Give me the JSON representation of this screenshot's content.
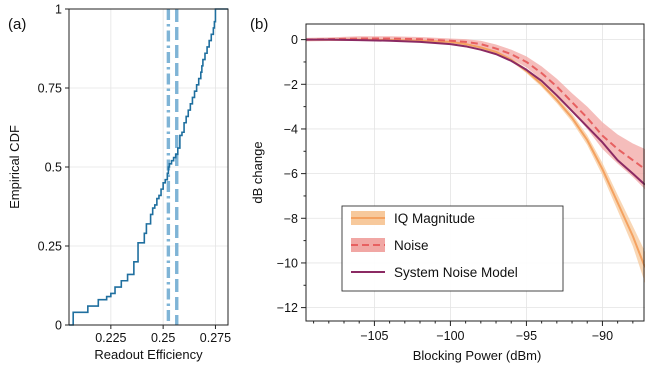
{
  "colors": {
    "cdf_line": "#1f6f9f",
    "vline": "#7fb4d6",
    "iq": "#f4a261",
    "iq_band": "#f7c99c",
    "noise": "#e76060",
    "noise_band": "#f1a7a4",
    "model": "#8b2a63"
  },
  "chart_data": [
    {
      "panel_label": "(a)",
      "type": "line",
      "xlabel": "Readout Efficiency",
      "ylabel": "Empirical CDF",
      "xlim": [
        0.205,
        0.281
      ],
      "ylim": [
        0,
        1
      ],
      "xticks": [
        0.225,
        0.25,
        0.275
      ],
      "xtick_labels": [
        "0.225",
        "0.25",
        "0.275"
      ],
      "yticks": [
        0,
        0.25,
        0.5,
        0.75,
        1
      ],
      "ytick_labels": [
        "0",
        "0.25",
        "0.5",
        "0.75",
        "1"
      ],
      "grid": true,
      "step_series": {
        "x": [
          0.205,
          0.207,
          0.214,
          0.219,
          0.223,
          0.225,
          0.227,
          0.23,
          0.233,
          0.236,
          0.238,
          0.241,
          0.242,
          0.244,
          0.245,
          0.246,
          0.247,
          0.248,
          0.249,
          0.25,
          0.251,
          0.252,
          0.2525,
          0.253,
          0.254,
          0.255,
          0.256,
          0.257,
          0.258,
          0.259,
          0.26,
          0.261,
          0.262,
          0.263,
          0.264,
          0.265,
          0.266,
          0.267,
          0.268,
          0.2685,
          0.269,
          0.27,
          0.271,
          0.272,
          0.273,
          0.274,
          0.2745,
          0.275
        ],
        "y": [
          0.0,
          0.04,
          0.06,
          0.08,
          0.09,
          0.1,
          0.12,
          0.14,
          0.16,
          0.2,
          0.26,
          0.29,
          0.32,
          0.35,
          0.37,
          0.38,
          0.4,
          0.41,
          0.43,
          0.45,
          0.46,
          0.48,
          0.5,
          0.51,
          0.52,
          0.53,
          0.54,
          0.56,
          0.6,
          0.61,
          0.64,
          0.66,
          0.68,
          0.7,
          0.72,
          0.74,
          0.76,
          0.78,
          0.8,
          0.82,
          0.84,
          0.86,
          0.88,
          0.9,
          0.92,
          0.94,
          0.96,
          1.0
        ]
      },
      "vlines": [
        {
          "x": 0.2525,
          "style": "dashdot"
        },
        {
          "x": 0.2565,
          "style": "dashed"
        }
      ]
    },
    {
      "panel_label": "(b)",
      "type": "line",
      "xlabel": "Blocking Power (dBm)",
      "ylabel": "dB change",
      "xlim": [
        -109.5,
        -87.2
      ],
      "ylim": [
        -12.6,
        0.7
      ],
      "xticks": [
        -105,
        -100,
        -95,
        -90
      ],
      "xtick_labels": [
        "−105",
        "−100",
        "−95",
        "−90"
      ],
      "yticks": [
        0,
        -2,
        -4,
        -6,
        -8,
        -10,
        -12
      ],
      "ytick_labels": [
        "0",
        "−2",
        "−4",
        "−6",
        "−8",
        "−10",
        "−12"
      ],
      "grid": true,
      "legend_position": "lower-left",
      "series": [
        {
          "name": "IQ Magnitude",
          "style": "solid",
          "x": [
            -109.5,
            -108,
            -106,
            -104,
            -102,
            -100,
            -99,
            -98,
            -97,
            -96,
            -95,
            -94,
            -93,
            -92,
            -91,
            -90,
            -89,
            -88,
            -87.2
          ],
          "y": [
            0.0,
            0.0,
            0.0,
            -0.02,
            -0.05,
            -0.1,
            -0.2,
            -0.35,
            -0.55,
            -0.9,
            -1.4,
            -2.0,
            -2.7,
            -3.5,
            -4.5,
            -5.8,
            -7.3,
            -8.8,
            -10.2
          ],
          "band_half_width": [
            0.05,
            0.05,
            0.05,
            0.05,
            0.05,
            0.05,
            0.05,
            0.05,
            0.06,
            0.08,
            0.1,
            0.12,
            0.15,
            0.18,
            0.22,
            0.28,
            0.35,
            0.45,
            0.7
          ]
        },
        {
          "name": "Noise",
          "style": "dashed",
          "x": [
            -109.5,
            -108,
            -106,
            -104,
            -102,
            -100,
            -99,
            -98,
            -97,
            -96,
            -95,
            -94,
            -93,
            -92,
            -91,
            -90,
            -89,
            -88,
            -87.2
          ],
          "y": [
            0.0,
            0.02,
            0.05,
            0.05,
            0.02,
            -0.05,
            -0.1,
            -0.2,
            -0.4,
            -0.65,
            -1.0,
            -1.5,
            -2.1,
            -2.8,
            -3.5,
            -4.3,
            -4.9,
            -5.4,
            -5.8
          ],
          "band_half_width": [
            0.08,
            0.08,
            0.1,
            0.1,
            0.1,
            0.1,
            0.12,
            0.15,
            0.18,
            0.2,
            0.25,
            0.3,
            0.35,
            0.4,
            0.5,
            0.6,
            0.65,
            0.75,
            0.9
          ]
        },
        {
          "name": "System Noise Model",
          "style": "solid",
          "x": [
            -109.5,
            -108,
            -106,
            -104,
            -102,
            -100,
            -99,
            -98,
            -97,
            -96,
            -95,
            -94,
            -93,
            -92,
            -91,
            -90,
            -89,
            -88,
            -87.2
          ],
          "y": [
            0.0,
            0.0,
            -0.02,
            -0.05,
            -0.1,
            -0.2,
            -0.3,
            -0.45,
            -0.65,
            -0.95,
            -1.35,
            -1.85,
            -2.5,
            -3.2,
            -3.9,
            -4.6,
            -5.4,
            -6.0,
            -6.5
          ]
        }
      ]
    }
  ]
}
